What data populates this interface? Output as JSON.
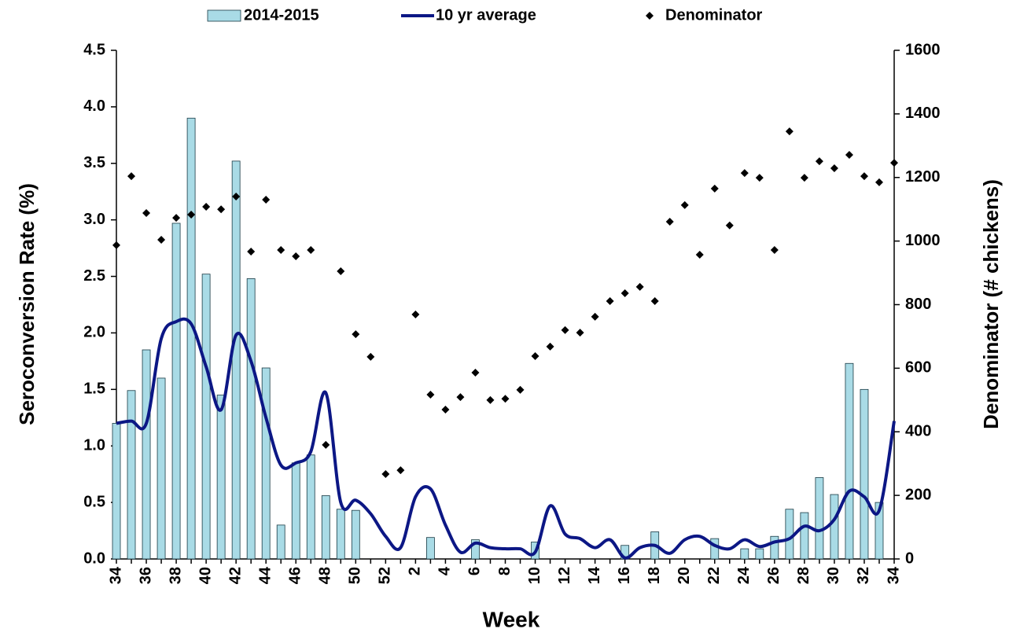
{
  "chart_data": {
    "type": "bar-line-scatter",
    "x_label": "Week",
    "y_label": "Seroconversion Rate (%)",
    "y2_label": "Denominator (# chickens)",
    "categories": [
      "34",
      null,
      "36",
      null,
      "38",
      null,
      "40",
      null,
      "42",
      null,
      "44",
      null,
      "46",
      null,
      "48",
      null,
      "50",
      null,
      "52",
      null,
      "2",
      null,
      "4",
      null,
      "6",
      null,
      "8",
      null,
      "10",
      null,
      "12",
      null,
      "14",
      null,
      "16",
      null,
      "18",
      null,
      "20",
      null,
      "22",
      null,
      "24",
      null,
      "26",
      null,
      "28",
      null,
      "30",
      null,
      "32",
      null,
      "34"
    ],
    "series": [
      {
        "name": "2014-2015",
        "type": "bar",
        "color": "#a9dbe6",
        "values": [
          1.2,
          1.49,
          1.85,
          1.6,
          2.97,
          3.9,
          2.52,
          1.45,
          3.52,
          2.48,
          1.69,
          0.3,
          0.85,
          0.92,
          0.56,
          0.44,
          0.43,
          0,
          0,
          0,
          0,
          0.19,
          0,
          0,
          0.17,
          0,
          0,
          0,
          0.15,
          0,
          0,
          0,
          0,
          0,
          0.12,
          0,
          0.24,
          0,
          0,
          0,
          0.18,
          0,
          0.09,
          0.09,
          0.2,
          0.44,
          0.41,
          0.72,
          0.57,
          1.73,
          1.5,
          0.5,
          0
        ]
      },
      {
        "name": "10 yr average",
        "type": "line",
        "color": "#0c1785",
        "values": [
          1.2,
          1.22,
          1.2,
          1.95,
          2.1,
          2.08,
          1.7,
          1.32,
          1.98,
          1.75,
          1.25,
          0.83,
          0.85,
          0.95,
          1.47,
          0.5,
          0.52,
          0.4,
          0.2,
          0.1,
          0.55,
          0.62,
          0.3,
          0.06,
          0.14,
          0.1,
          0.09,
          0.09,
          0.06,
          0.47,
          0.22,
          0.18,
          0.1,
          0.17,
          0.01,
          0.1,
          0.12,
          0.05,
          0.17,
          0.2,
          0.12,
          0.09,
          0.17,
          0.11,
          0.15,
          0.18,
          0.29,
          0.25,
          0.35,
          0.6,
          0.55,
          0.43,
          1.22
        ]
      },
      {
        "name": "Denominator",
        "type": "scatter",
        "axis": "y2",
        "color": "#000000",
        "values": [
          987,
          1204,
          1088,
          1004,
          1073,
          1083,
          1108,
          1100,
          1140,
          967,
          1130,
          972,
          952,
          972,
          359,
          905,
          707,
          636,
          267,
          279,
          769,
          517,
          470,
          509,
          586,
          500,
          504,
          532,
          638,
          668,
          720,
          712,
          762,
          811,
          836,
          856,
          811,
          1061,
          1113,
          957,
          1165,
          1049,
          1214,
          1199,
          972,
          1345,
          1199,
          1251,
          1229,
          1271,
          1204,
          1185,
          1246
        ]
      }
    ],
    "ylim": [
      0,
      4.5
    ],
    "yticks": [
      {
        "value": 0,
        "label": "0.0"
      },
      0.5,
      {
        "value": 1,
        "label": "1.0"
      },
      1.5,
      {
        "value": 2,
        "label": "2.0"
      },
      2.5,
      {
        "value": 3,
        "label": "3.0"
      },
      3.5,
      {
        "value": 4,
        "label": "4.0"
      },
      4.5
    ],
    "y2lim": [
      0,
      1600
    ],
    "y2ticks": [
      0,
      200,
      400,
      600,
      800,
      1000,
      1200,
      1400,
      1600
    ],
    "legend": "top",
    "grid": false
  }
}
